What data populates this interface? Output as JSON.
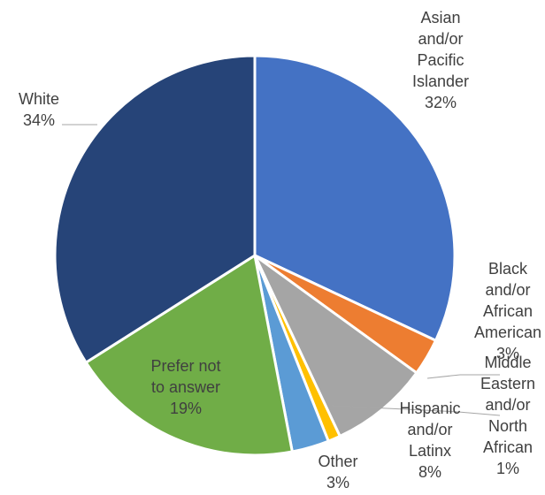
{
  "chart_data": {
    "type": "pie",
    "title": "",
    "legend": false,
    "series": [
      {
        "name": "",
        "slices": [
          {
            "label": "Asian and/or Pacific Islander",
            "label_lines": [
              "Asian",
              "and/or",
              "Pacific",
              "Islander"
            ],
            "value": 32,
            "percent_label": "32%",
            "color": "#4472c4"
          },
          {
            "label": "Black and/or African American",
            "label_lines": [
              "Black",
              "and/or",
              "African",
              "American"
            ],
            "value": 3,
            "percent_label": "3%",
            "color": "#ed7d31"
          },
          {
            "label": "Hispanic and/or Latinx",
            "label_lines": [
              "Hispanic",
              "and/or",
              "Latinx"
            ],
            "value": 8,
            "percent_label": "8%",
            "color": "#a5a5a5"
          },
          {
            "label": "Middle Eastern and/or North African",
            "label_lines": [
              "Middle",
              "Eastern",
              "and/or",
              "North",
              "African"
            ],
            "value": 1,
            "percent_label": "1%",
            "color": "#ffc000"
          },
          {
            "label": "Other",
            "label_lines": [
              "Other"
            ],
            "value": 3,
            "percent_label": "3%",
            "color": "#5b9bd5"
          },
          {
            "label": "Prefer not to answer",
            "label_lines": [
              "Prefer not",
              "to answer"
            ],
            "value": 19,
            "percent_label": "19%",
            "color": "#70ad47"
          },
          {
            "label": "White",
            "label_lines": [
              "White"
            ],
            "value": 34,
            "percent_label": "34%",
            "color": "#264478"
          }
        ]
      }
    ]
  }
}
